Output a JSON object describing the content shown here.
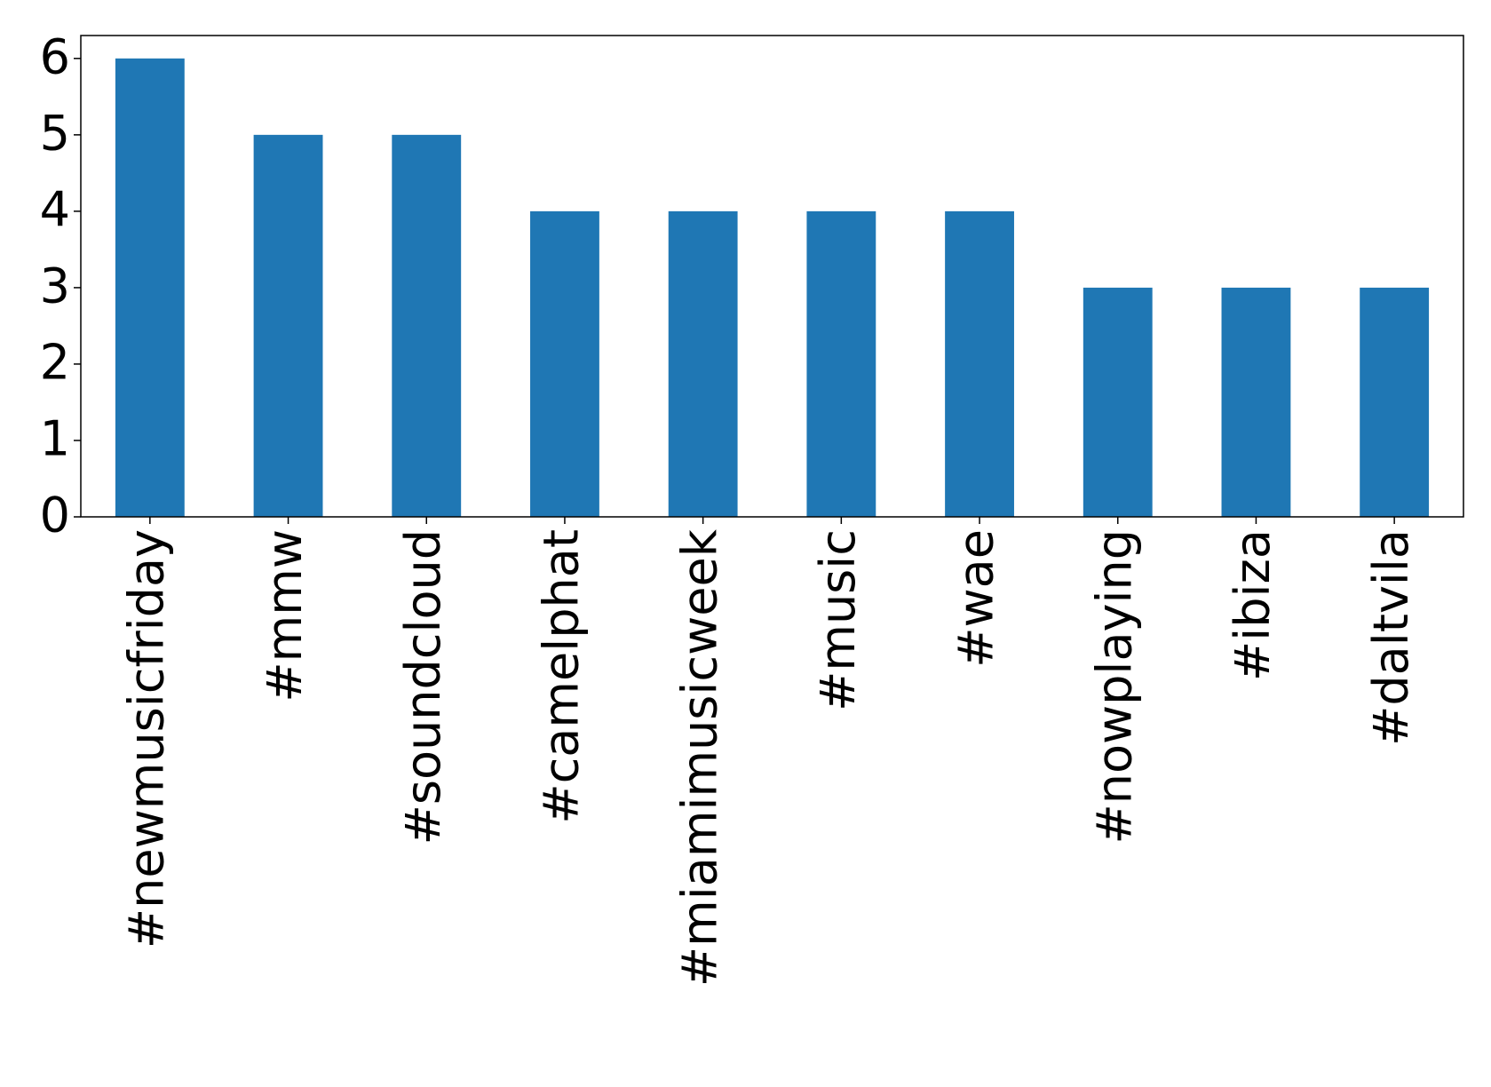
{
  "chart_data": {
    "type": "bar",
    "categories": [
      "#newmusicfriday",
      "#mmw",
      "#soundcloud",
      "#camelphat",
      "#miamimusicweek",
      "#music",
      "#wae",
      "#nowplaying",
      "#ibiza",
      "#daltvila"
    ],
    "values": [
      6,
      5,
      5,
      4,
      4,
      4,
      4,
      3,
      3,
      3
    ],
    "color": "#1f77b4",
    "ylim": [
      0,
      6.3
    ],
    "yticks": [
      0,
      1,
      2,
      3,
      4,
      5,
      6
    ],
    "grid": false
  }
}
